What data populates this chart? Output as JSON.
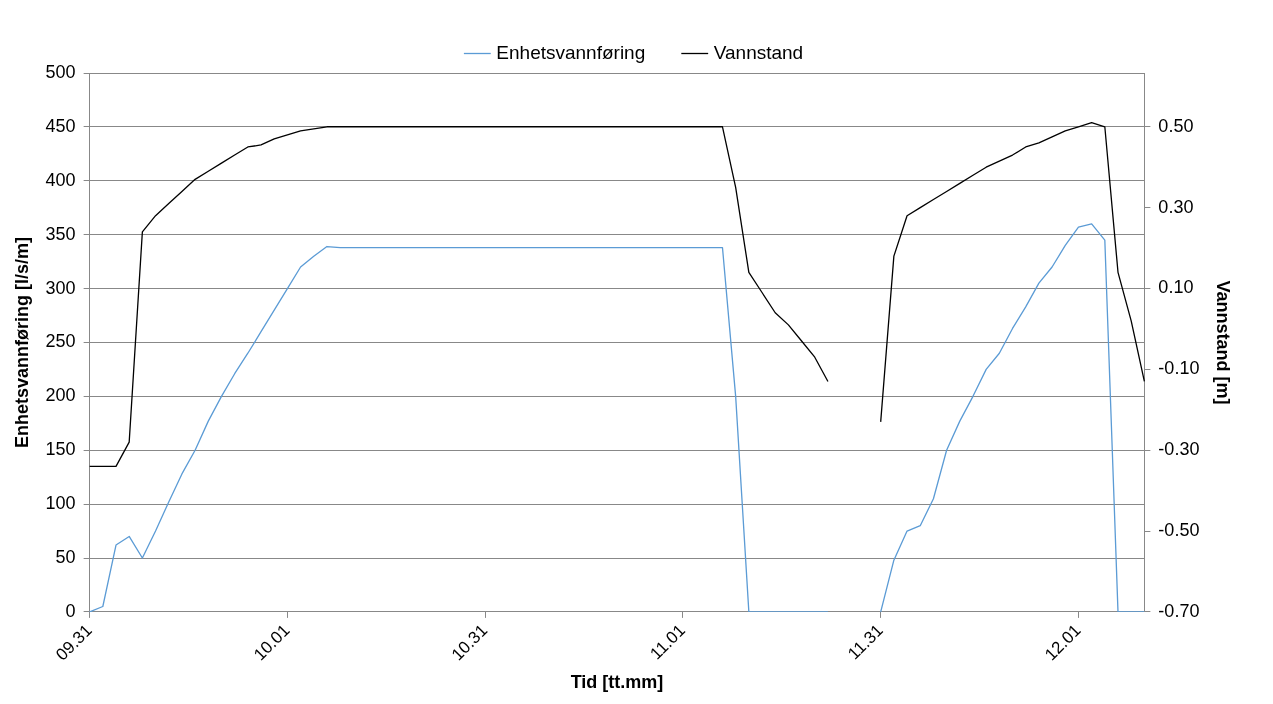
{
  "chart_data": {
    "type": "line",
    "xlabel": "Tid [tt.mm]",
    "ylabel": "Enhetsvannføring [l/s/m]",
    "y2label": "Vannstand [m]",
    "categories": [
      "09.31",
      null,
      null,
      null,
      null,
      null,
      null,
      null,
      null,
      null,
      null,
      null,
      null,
      null,
      null,
      "10.01",
      null,
      null,
      null,
      null,
      null,
      null,
      null,
      null,
      null,
      null,
      null,
      null,
      null,
      null,
      "10.31",
      null,
      null,
      null,
      null,
      null,
      null,
      null,
      null,
      null,
      null,
      null,
      null,
      null,
      null,
      "11.01",
      null,
      null,
      null,
      null,
      null,
      null,
      null,
      null,
      null,
      null,
      null,
      null,
      null,
      null,
      "11.31",
      null,
      null,
      null,
      null,
      null,
      null,
      null,
      null,
      null,
      null,
      null,
      null,
      null,
      null,
      "12.01",
      null,
      null,
      null,
      null,
      null
    ],
    "ylim": [
      0,
      500
    ],
    "yticks": [
      0,
      50,
      100,
      150,
      200,
      250,
      300,
      350,
      400,
      450,
      500
    ],
    "y2lim": [
      -0.7,
      0.633
    ],
    "y2ticks": [
      {
        "value": -0.7,
        "label": "-0.70"
      },
      {
        "value": -0.5,
        "label": "-0.50"
      },
      {
        "value": -0.3,
        "label": "-0.30"
      },
      {
        "value": -0.1,
        "label": "-0.10"
      },
      {
        "value": 0.1,
        "label": "0.10"
      },
      {
        "value": 0.3,
        "label": "0.30"
      },
      {
        "value": 0.5,
        "label": "0.50"
      }
    ],
    "grid": "y",
    "legend": "top",
    "marker": "none",
    "line_style": "solid",
    "series": [
      {
        "name": "Enhetsvannføring",
        "color": "#5b9bd5",
        "values": [
          0,
          5,
          62,
          70,
          50,
          75,
          102,
          128,
          150,
          177,
          200,
          221,
          240,
          260,
          280,
          300,
          320,
          330,
          339,
          338,
          338,
          338,
          338,
          338,
          338,
          338,
          338,
          338,
          338,
          338,
          338,
          338,
          338,
          338,
          338,
          338,
          338,
          338,
          338,
          338,
          338,
          338,
          338,
          338,
          338,
          338,
          338,
          338,
          338,
          200,
          0,
          0,
          0,
          0,
          0,
          0,
          0,
          null,
          null,
          null,
          0,
          48,
          75,
          80,
          105,
          150,
          177,
          200,
          225,
          240,
          263,
          283,
          305,
          320,
          340,
          357,
          360,
          345,
          0,
          0,
          0
        ]
      },
      {
        "name": "Vannstand",
        "color": "#000000",
        "axis": "y2",
        "values": [
          -0.34,
          -0.34,
          -0.34,
          -0.28,
          0.24,
          0.28,
          0.31,
          0.34,
          0.37,
          0.39,
          0.41,
          0.43,
          0.45,
          0.455,
          0.47,
          0.48,
          0.49,
          0.495,
          0.5,
          0.5,
          0.5,
          0.5,
          0.5,
          0.5,
          0.5,
          0.5,
          0.5,
          0.5,
          0.5,
          0.5,
          0.5,
          0.5,
          0.5,
          0.5,
          0.5,
          0.5,
          0.5,
          0.5,
          0.5,
          0.5,
          0.5,
          0.5,
          0.5,
          0.5,
          0.5,
          0.5,
          0.5,
          0.5,
          0.5,
          0.35,
          0.14,
          0.09,
          0.04,
          0.01,
          -0.03,
          -0.07,
          -0.13,
          null,
          null,
          null,
          -0.23,
          0.18,
          0.28,
          0.3,
          0.32,
          0.34,
          0.36,
          0.38,
          0.4,
          0.415,
          0.43,
          0.45,
          0.46,
          0.475,
          0.49,
          0.5,
          0.51,
          0.5,
          0.14,
          0.02,
          -0.13
        ]
      }
    ]
  }
}
